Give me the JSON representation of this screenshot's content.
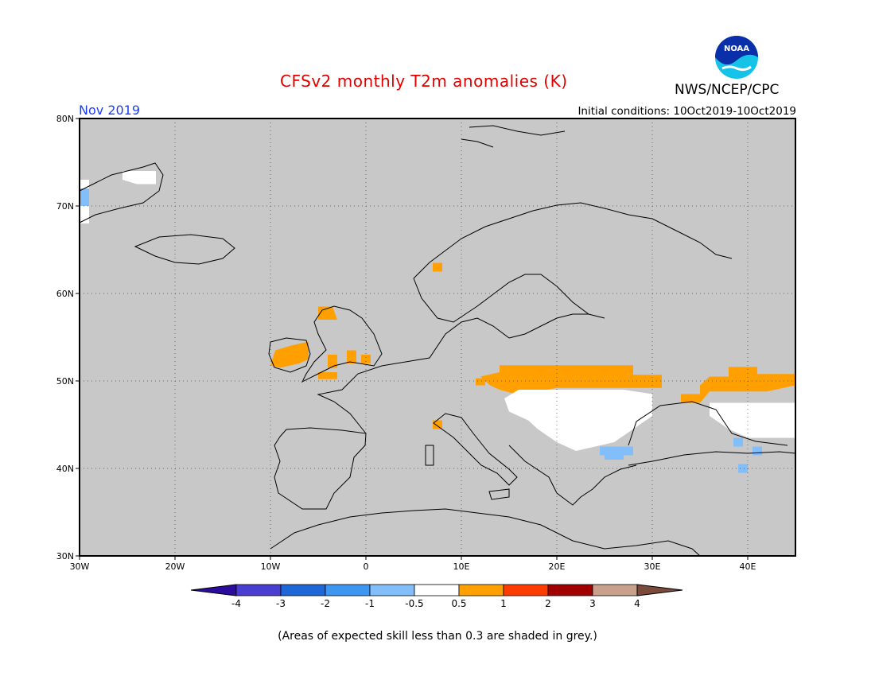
{
  "header": {
    "title": "CFSv2 monthly T2m anomalies (K)",
    "agency": "NWS/NCEP/CPC",
    "logo_text": "NOAA",
    "month": "Nov 2019",
    "initial_conditions": "Initial conditions: 10Oct2019-10Oct2019"
  },
  "map": {
    "lon_range": [
      -30,
      45
    ],
    "lat_range": [
      30,
      80
    ],
    "x_ticks": [
      {
        "lon": -30,
        "label": "30W"
      },
      {
        "lon": -20,
        "label": "20W"
      },
      {
        "lon": -10,
        "label": "10W"
      },
      {
        "lon": 0,
        "label": "0"
      },
      {
        "lon": 10,
        "label": "10E"
      },
      {
        "lon": 20,
        "label": "20E"
      },
      {
        "lon": 30,
        "label": "30E"
      },
      {
        "lon": 40,
        "label": "40E"
      }
    ],
    "y_ticks": [
      {
        "lat": 80,
        "label": "80N"
      },
      {
        "lat": 70,
        "label": "70N"
      },
      {
        "lat": 60,
        "label": "60N"
      },
      {
        "lat": 50,
        "label": "50N"
      },
      {
        "lat": 40,
        "label": "40N"
      },
      {
        "lat": 30,
        "label": "30N"
      }
    ],
    "background_color": "#c8c8c8",
    "anomaly_regions": [
      {
        "name": "central-europe-warm-band",
        "category": "0.5 to 1",
        "polygon": [
          [
            14,
            51.8
          ],
          [
            28,
            51.8
          ],
          [
            28,
            50.7
          ],
          [
            31,
            50.7
          ],
          [
            31,
            49.2
          ],
          [
            27,
            49.2
          ],
          [
            20,
            49.2
          ],
          [
            16,
            48.4
          ],
          [
            14,
            49
          ],
          [
            13,
            49.5
          ],
          [
            12,
            50.5
          ],
          [
            14,
            51
          ]
        ]
      },
      {
        "name": "russia-warm-band",
        "category": "0.5 to 1",
        "polygon": [
          [
            36,
            50.5
          ],
          [
            38,
            50.5
          ],
          [
            38,
            51.6
          ],
          [
            41,
            51.6
          ],
          [
            41,
            50.8
          ],
          [
            45,
            50.8
          ],
          [
            45,
            49.5
          ],
          [
            42,
            48.8
          ],
          [
            36,
            48.8
          ],
          [
            35,
            47.5
          ],
          [
            33,
            47.5
          ],
          [
            33,
            48.5
          ],
          [
            35,
            48.5
          ],
          [
            35,
            49.5
          ]
        ]
      },
      {
        "name": "ireland-warm",
        "category": "0.5 to 1",
        "polygon": [
          [
            -10,
            51.8
          ],
          [
            -9.5,
            53.5
          ],
          [
            -8,
            54
          ],
          [
            -6,
            54.5
          ],
          [
            -6,
            52.5
          ],
          [
            -7,
            52
          ],
          [
            -9,
            51.5
          ]
        ]
      },
      {
        "name": "scotland-warm",
        "category": "0.5 to 1",
        "polygon": [
          [
            -5,
            57
          ],
          [
            -5,
            58.5
          ],
          [
            -3.5,
            58.5
          ],
          [
            -3,
            57
          ]
        ]
      },
      {
        "name": "wales-warm",
        "category": "0.5 to 1",
        "polygon": [
          [
            -5,
            50.2
          ],
          [
            -5,
            51
          ],
          [
            -3,
            51
          ],
          [
            -3,
            50.2
          ]
        ]
      },
      {
        "name": "england-warm-1",
        "category": "0.5 to 1",
        "polygon": [
          [
            -4,
            51.5
          ],
          [
            -4,
            53
          ],
          [
            -3,
            53
          ],
          [
            -3,
            51.5
          ]
        ]
      },
      {
        "name": "england-warm-2",
        "category": "0.5 to 1",
        "polygon": [
          [
            -2,
            52
          ],
          [
            -2,
            53.5
          ],
          [
            -1,
            53.5
          ],
          [
            -1,
            52
          ]
        ]
      },
      {
        "name": "england-warm-3",
        "category": "0.5 to 1",
        "polygon": [
          [
            -0.5,
            52
          ],
          [
            -0.5,
            53
          ],
          [
            0.5,
            53
          ],
          [
            0.5,
            52
          ]
        ]
      },
      {
        "name": "norway-warm",
        "category": "0.5 to 1",
        "polygon": [
          [
            7,
            62.5
          ],
          [
            7,
            63.5
          ],
          [
            8,
            63.5
          ],
          [
            8,
            62.5
          ]
        ]
      },
      {
        "name": "alps-warm",
        "category": "0.5 to 1",
        "polygon": [
          [
            7,
            44.5
          ],
          [
            7,
            45.5
          ],
          [
            8,
            45.5
          ],
          [
            8,
            44.5
          ]
        ]
      },
      {
        "name": "germany-warm",
        "category": "0.5 to 1",
        "polygon": [
          [
            11.5,
            49.5
          ],
          [
            11.5,
            50.3
          ],
          [
            12.5,
            50.3
          ],
          [
            12.5,
            49.5
          ]
        ]
      },
      {
        "name": "carpathian-basin-neutral",
        "category": "-0.5 to 0.5",
        "polygon": [
          [
            16,
            49
          ],
          [
            20,
            49
          ],
          [
            27,
            49
          ],
          [
            30,
            48.5
          ],
          [
            30,
            46
          ],
          [
            28,
            44.5
          ],
          [
            26,
            43
          ],
          [
            22,
            42
          ],
          [
            20,
            43
          ],
          [
            18,
            44.5
          ],
          [
            17,
            45.5
          ],
          [
            15,
            46.5
          ],
          [
            14.5,
            48
          ]
        ]
      },
      {
        "name": "caucasus-neutral",
        "category": "-0.5 to 0.5",
        "polygon": [
          [
            36,
            47.5
          ],
          [
            45,
            47.5
          ],
          [
            45,
            43.5
          ],
          [
            40,
            43.5
          ],
          [
            38,
            44.5
          ],
          [
            36,
            46
          ]
        ]
      },
      {
        "name": "iceland-coast-neutral",
        "category": "-0.5 to 0.5",
        "polygon": [
          [
            -25.5,
            73
          ],
          [
            -25.5,
            74
          ],
          [
            -22,
            74
          ],
          [
            -22,
            72.5
          ],
          [
            -24,
            72.5
          ]
        ]
      },
      {
        "name": "greenland-neutral",
        "category": "-0.5 to 0.5",
        "polygon": [
          [
            -30,
            68
          ],
          [
            -30,
            73
          ],
          [
            -29,
            73
          ],
          [
            -29,
            68
          ]
        ]
      },
      {
        "name": "bulgaria-cool",
        "category": "-1 to -0.5",
        "polygon": [
          [
            24.5,
            41.5
          ],
          [
            24.5,
            42.5
          ],
          [
            28,
            42.5
          ],
          [
            28,
            41.5
          ]
        ]
      },
      {
        "name": "turkey-cool",
        "category": "-1 to -0.5",
        "polygon": [
          [
            25,
            41
          ],
          [
            25,
            41.5
          ],
          [
            27,
            41.5
          ],
          [
            27,
            41
          ]
        ]
      },
      {
        "name": "caucasus-cool-1",
        "category": "-1 to -0.5",
        "polygon": [
          [
            38.5,
            42.5
          ],
          [
            38.5,
            43.5
          ],
          [
            39.5,
            43.5
          ],
          [
            39.5,
            42.5
          ]
        ]
      },
      {
        "name": "caucasus-cool-2",
        "category": "-1 to -0.5",
        "polygon": [
          [
            40.5,
            41.5
          ],
          [
            40.5,
            42.5
          ],
          [
            41.5,
            42.5
          ],
          [
            41.5,
            41.5
          ]
        ]
      },
      {
        "name": "anatolia-cool",
        "category": "-1 to -0.5",
        "polygon": [
          [
            39,
            39.5
          ],
          [
            39,
            40.5
          ],
          [
            40,
            40.5
          ],
          [
            40,
            39.5
          ]
        ]
      },
      {
        "name": "greenland-cool",
        "category": "-1 to -0.5",
        "polygon": [
          [
            -30,
            70
          ],
          [
            -30,
            72
          ],
          [
            -29,
            72
          ],
          [
            -29,
            70
          ]
        ]
      }
    ]
  },
  "colorbar": {
    "bins": [
      {
        "label": "-4",
        "color": "#2c0c9e"
      },
      {
        "label": "-3",
        "color": "#4a3ed0"
      },
      {
        "label": "-2",
        "color": "#1f66d6"
      },
      {
        "label": "-1",
        "color": "#3c96f2"
      },
      {
        "label": "-0.5",
        "color": "#82befa"
      },
      {
        "label": "0.5",
        "color": "#ffffff"
      },
      {
        "label": "1",
        "color": "#ffa000"
      },
      {
        "label": "2",
        "color": "#ff3c00"
      },
      {
        "label": "3",
        "color": "#a00000"
      },
      {
        "label": "4",
        "color": "#c8a08c"
      },
      {
        "label": "",
        "color": "#7a4a3a"
      }
    ]
  },
  "footer_note": "(Areas of expected skill less than 0.3 are shaded in grey.)"
}
